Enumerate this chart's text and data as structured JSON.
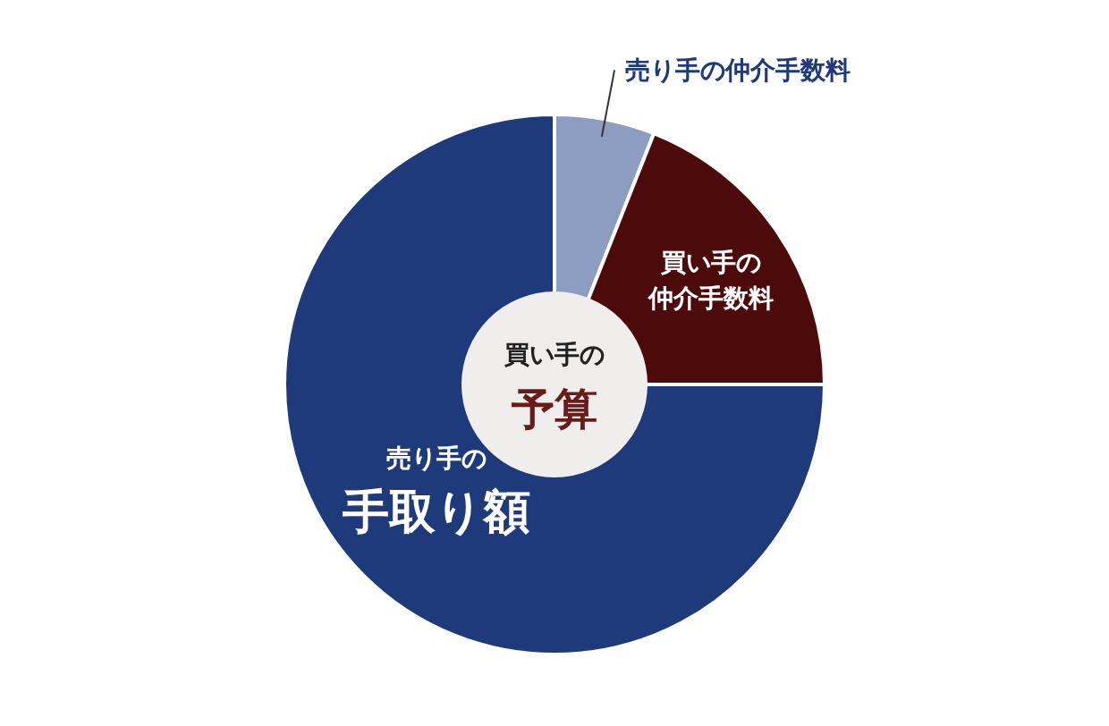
{
  "chart_data": {
    "type": "pie",
    "categories": [
      "売り手の仲介手数料",
      "買い手の仲介手数料",
      "売り手の手取り額"
    ],
    "values": [
      6,
      19,
      75
    ],
    "colors": [
      "#8d9dc2",
      "#4d0a0a",
      "#1f3a7a"
    ],
    "annotations": [
      "買い手の",
      "予算"
    ]
  }
}
